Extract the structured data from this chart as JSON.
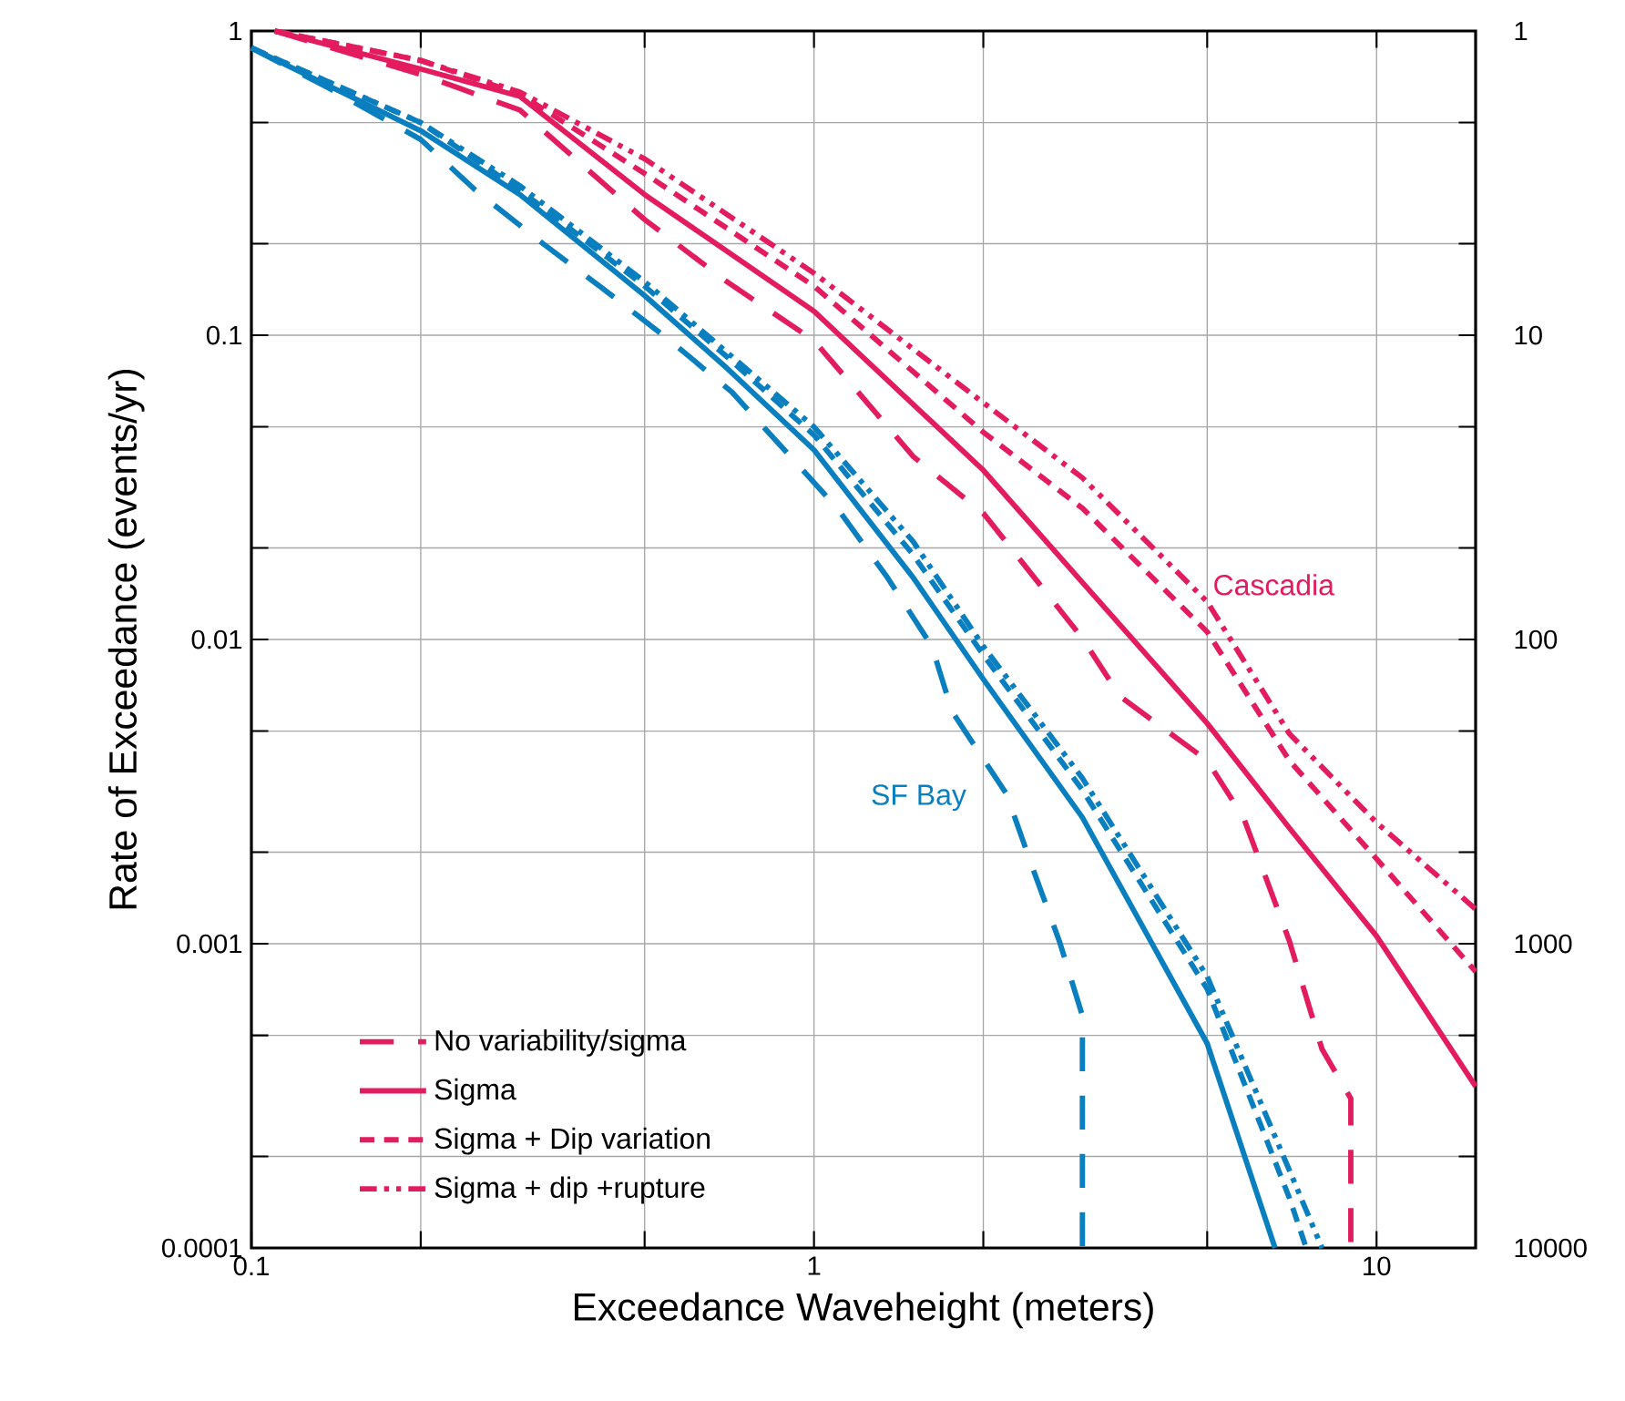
{
  "chart_data": {
    "type": "line",
    "xlabel": "Exceedance Waveheight (meters)",
    "ylabel": "Rate of Exceedance (events/yr)",
    "log": "xy",
    "grid": true,
    "legend": "bottom left",
    "xlim": [
      0.1,
      15
    ],
    "xticks": [
      0.1,
      {
        "value": 0.2,
        "label": null
      },
      {
        "value": 0.5,
        "label": null
      },
      1,
      {
        "value": 2,
        "label": null
      },
      {
        "value": 5,
        "label": null
      },
      10
    ],
    "ylim": [
      0.0001,
      1
    ],
    "yticks": [
      0.0001,
      {
        "value": 0.0002,
        "label": null
      },
      {
        "value": 0.0005,
        "label": null
      },
      0.001,
      {
        "value": 0.002,
        "label": null
      },
      {
        "value": 0.005,
        "label": null
      },
      0.01,
      {
        "value": 0.02,
        "label": null
      },
      {
        "value": 0.05,
        "label": null
      },
      0.1,
      {
        "value": 0.2,
        "label": null
      },
      {
        "value": 0.5,
        "label": null
      },
      1
    ],
    "annotations": [
      "Cascadia",
      "SF Bay",
      "1",
      "10",
      "100",
      "1000",
      "10000"
    ],
    "series": [
      {
        "name": "No variability/sigma",
        "color": "#e31c5f",
        "line_style": "dashed",
        "x": [
          0.11,
          0.2,
          0.3,
          0.5,
          0.7,
          1,
          1.5,
          2,
          3,
          3.5,
          5,
          5.8,
          7,
          8,
          9,
          9
        ],
        "values": [
          1,
          0.72,
          0.55,
          0.24,
          0.15,
          0.096,
          0.04,
          0.026,
          0.0101,
          0.0065,
          0.004,
          0.0026,
          0.00102,
          0.00045,
          0.00031,
          0.0001
        ]
      },
      {
        "name": "Sigma",
        "color": "#e31c5f",
        "line_style": "solid",
        "x": [
          0.11,
          0.2,
          0.3,
          0.5,
          1,
          2,
          3,
          5,
          7,
          10,
          15
        ],
        "values": [
          1,
          0.75,
          0.61,
          0.29,
          0.12,
          0.036,
          0.0154,
          0.0053,
          0.0024,
          0.00106,
          0.00034
        ]
      },
      {
        "name": "Sigma + Dip variation",
        "color": "#e31c5f",
        "line_style": "short dashed",
        "x": [
          0.11,
          0.2,
          0.3,
          0.5,
          1,
          2,
          3,
          5,
          7,
          10,
          15
        ],
        "values": [
          1,
          0.8,
          0.62,
          0.34,
          0.145,
          0.048,
          0.027,
          0.0106,
          0.004,
          0.0019,
          0.00081
        ]
      },
      {
        "name": "Sigma + dip +rupture",
        "color": "#e31c5f",
        "line_style": "dash dot dot",
        "x": [
          0.11,
          0.2,
          0.3,
          0.5,
          1,
          2,
          3,
          5,
          7,
          10,
          15
        ],
        "values": [
          1,
          0.8,
          0.63,
          0.38,
          0.16,
          0.06,
          0.034,
          0.0133,
          0.0049,
          0.0025,
          0.0013
        ]
      },
      {
        "color": "#0a7fc0",
        "line_style": "dashed",
        "x": [
          0.1,
          0.137,
          0.2,
          0.25,
          0.33,
          0.42,
          0.555,
          0.715,
          1.1,
          1.35,
          1.62,
          1.76,
          2.2,
          2.44,
          2.73,
          3,
          3
        ],
        "values": [
          0.88,
          0.65,
          0.44,
          0.3,
          0.2,
          0.143,
          0.096,
          0.065,
          0.027,
          0.016,
          0.0095,
          0.0058,
          0.0031,
          0.0018,
          0.00102,
          0.00058,
          0.0001
        ]
      },
      {
        "color": "#0a7fc0",
        "line_style": "solid",
        "x": [
          0.1,
          0.2,
          0.3,
          0.5,
          0.7,
          1,
          1.5,
          2,
          3,
          5,
          6.6
        ],
        "values": [
          0.88,
          0.47,
          0.29,
          0.135,
          0.078,
          0.042,
          0.016,
          0.0074,
          0.0026,
          0.00047,
          0.0001
        ]
      },
      {
        "color": "#0a7fc0",
        "line_style": "short dashed",
        "x": [
          0.1,
          0.2,
          0.3,
          0.5,
          0.7,
          1,
          1.5,
          2,
          3,
          5,
          7,
          7.5
        ],
        "values": [
          0.88,
          0.5,
          0.3,
          0.145,
          0.085,
          0.047,
          0.019,
          0.0089,
          0.0032,
          0.00071,
          0.000146,
          0.0001
        ]
      },
      {
        "color": "#0a7fc0",
        "line_style": "dash dot dot",
        "x": [
          0.1,
          0.2,
          0.3,
          0.5,
          0.7,
          1,
          1.5,
          2,
          3,
          5,
          7,
          8
        ],
        "values": [
          0.88,
          0.5,
          0.31,
          0.15,
          0.088,
          0.05,
          0.021,
          0.0095,
          0.0035,
          0.00078,
          0.00018,
          0.0001
        ]
      }
    ]
  }
}
